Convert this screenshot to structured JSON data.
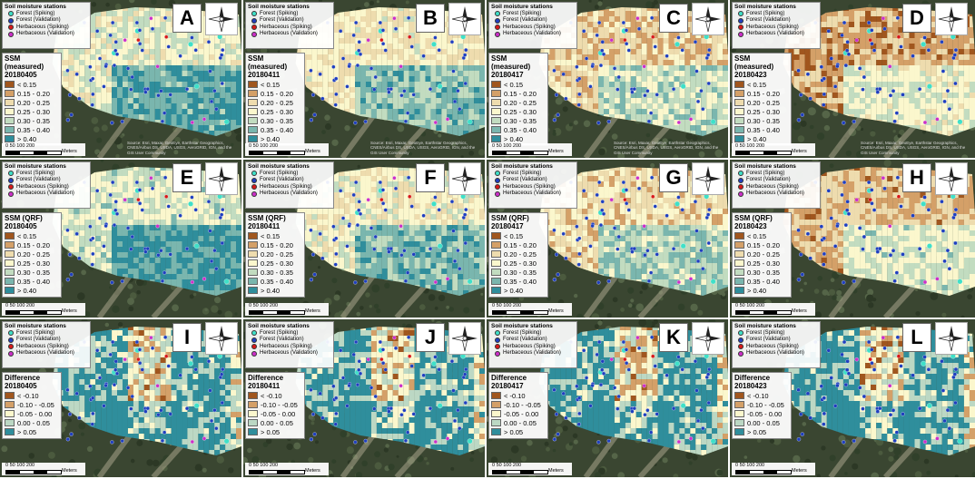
{
  "stations": {
    "title": "Soil moisture stations",
    "items": [
      {
        "label": "Forest (Spiking)",
        "color": "#3fe0c8"
      },
      {
        "label": "Forest (Validation)",
        "color": "#1f3fbf"
      },
      {
        "label": "Herbaceous (Spiking)",
        "color": "#d81818"
      },
      {
        "label": "Herbaceous (Validation)",
        "color": "#cc2fc8"
      }
    ]
  },
  "scale": {
    "ticks": "0   50 100        200",
    "unit": "Meters"
  },
  "credit": "Source: Esri, Maxar, GeoEye, Earthstar Geographics, CNES/Airbus DS, USDA, USGS, AeroGRID, IGN, and the GIS User Community",
  "legends": {
    "ssm": {
      "classes": [
        {
          "label": "< 0.15",
          "color": "#a0561e"
        },
        {
          "label": "0.15 - 0.20",
          "color": "#d4a068"
        },
        {
          "label": "0.20 - 0.25",
          "color": "#eedcae"
        },
        {
          "label": "0.25 - 0.30",
          "color": "#fbf7cd"
        },
        {
          "label": "0.30 - 0.35",
          "color": "#c2dcc0"
        },
        {
          "label": "0.35 - 0.40",
          "color": "#7ab6ae"
        },
        {
          "label": "> 0.40",
          "color": "#2f8e9c"
        }
      ]
    },
    "diff": {
      "classes": [
        {
          "label": "< -0.10",
          "color": "#a0561e"
        },
        {
          "label": "-0.10 - -0.05",
          "color": "#d4a068"
        },
        {
          "label": "-0.05 - 0.00",
          "color": "#fbf7cd"
        },
        {
          "label": "0.00 - 0.05",
          "color": "#bcd8c4"
        },
        {
          "label": "> 0.05",
          "color": "#2f8e9c"
        }
      ]
    }
  },
  "panels": [
    {
      "letter": "A",
      "title": "SSM (measured)",
      "date": "20180405",
      "legend": "ssm"
    },
    {
      "letter": "B",
      "title": "SSM (measured)",
      "date": "20180411",
      "legend": "ssm"
    },
    {
      "letter": "C",
      "title": "SSM (measured)",
      "date": "20180417",
      "legend": "ssm"
    },
    {
      "letter": "D",
      "title": "SSM (measured)",
      "date": "20180423",
      "legend": "ssm"
    },
    {
      "letter": "E",
      "title": "SSM (QRF)",
      "date": "20180405",
      "legend": "ssm"
    },
    {
      "letter": "F",
      "title": "SSM (QRF)",
      "date": "20180411",
      "legend": "ssm"
    },
    {
      "letter": "G",
      "title": "SSM (QRF)",
      "date": "20180417",
      "legend": "ssm"
    },
    {
      "letter": "H",
      "title": "SSM (QRF)",
      "date": "20180423",
      "legend": "ssm"
    },
    {
      "letter": "I",
      "title": "Difference",
      "date": "20180405",
      "legend": "diff"
    },
    {
      "letter": "J",
      "title": "Difference",
      "date": "20180411",
      "legend": "diff"
    },
    {
      "letter": "K",
      "title": "Difference",
      "date": "20180417",
      "legend": "diff"
    },
    {
      "letter": "L",
      "title": "Difference",
      "date": "20180423",
      "legend": "diff"
    }
  ]
}
